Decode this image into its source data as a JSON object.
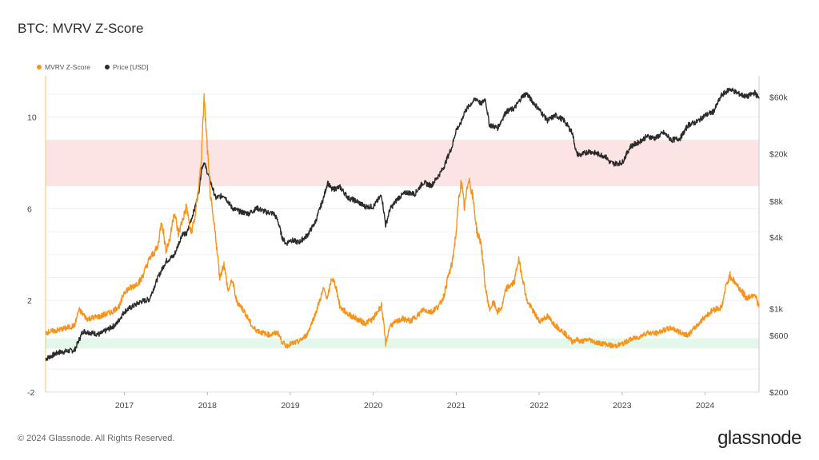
{
  "title": "BTC: MVRV Z-Score",
  "footer": "© 2024 Glassnode. All Rights Reserved.",
  "logo": "glassnode",
  "colors": {
    "zscore": "#f7931a",
    "price": "#2b2b2b",
    "red_band": "#fde4e4",
    "green_band": "#e3f7ea",
    "grid": "#f0f0f0",
    "axis_text": "#444444"
  },
  "chart_data": {
    "type": "line",
    "title": "BTC: MVRV Z-Score",
    "legend": [
      {
        "name": "MVRV Z-Score",
        "color": "#f7931a"
      },
      {
        "name": "Price [USD]",
        "color": "#2b2b2b"
      }
    ],
    "legend_position": "top-left",
    "x_range": [
      2016.05,
      2024.65
    ],
    "x_ticks": [
      "2017",
      "2018",
      "2019",
      "2020",
      "2021",
      "2022",
      "2023",
      "2024"
    ],
    "y_left": {
      "ticks": [
        "10",
        "6",
        "2",
        "-2"
      ],
      "tick_values": [
        10,
        6,
        2,
        -2
      ],
      "range": [
        -2,
        11.8
      ]
    },
    "y_right": {
      "scale": "log",
      "ticks": [
        "$60k",
        "$20k",
        "$8k",
        "$4k",
        "$1k",
        "$600",
        "$200"
      ],
      "tick_values": [
        60000,
        20000,
        8000,
        4000,
        1000,
        600,
        200
      ],
      "range": [
        200,
        90000
      ]
    },
    "bands": [
      {
        "name": "overvalued-zone",
        "y_from": 7.0,
        "y_to": 9.0
      },
      {
        "name": "undervalued-zone",
        "y_from": -0.1,
        "y_to": 0.35
      }
    ],
    "series": [
      {
        "name": "MVRV Z-Score",
        "axis": "left",
        "x": [
          2016.05,
          2016.2,
          2016.4,
          2016.45,
          2016.55,
          2016.7,
          2016.85,
          2016.95,
          2017.0,
          2017.1,
          2017.2,
          2017.3,
          2017.4,
          2017.45,
          2017.5,
          2017.55,
          2017.6,
          2017.65,
          2017.7,
          2017.75,
          2017.8,
          2017.85,
          2017.9,
          2017.93,
          2017.96,
          2018.0,
          2018.03,
          2018.06,
          2018.1,
          2018.15,
          2018.2,
          2018.25,
          2018.3,
          2018.35,
          2018.45,
          2018.55,
          2018.65,
          2018.75,
          2018.85,
          2018.9,
          2018.95,
          2019.0,
          2019.1,
          2019.2,
          2019.3,
          2019.4,
          2019.45,
          2019.5,
          2019.55,
          2019.6,
          2019.7,
          2019.8,
          2019.9,
          2020.0,
          2020.05,
          2020.1,
          2020.15,
          2020.2,
          2020.25,
          2020.35,
          2020.45,
          2020.55,
          2020.6,
          2020.7,
          2020.8,
          2020.85,
          2020.9,
          2020.95,
          2021.0,
          2021.03,
          2021.06,
          2021.1,
          2021.15,
          2021.2,
          2021.25,
          2021.3,
          2021.35,
          2021.4,
          2021.45,
          2021.5,
          2021.55,
          2021.6,
          2021.7,
          2021.75,
          2021.8,
          2021.85,
          2021.9,
          2022.0,
          2022.1,
          2022.2,
          2022.3,
          2022.4,
          2022.45,
          2022.5,
          2022.6,
          2022.7,
          2022.8,
          2022.9,
          2023.0,
          2023.1,
          2023.2,
          2023.3,
          2023.4,
          2023.5,
          2023.6,
          2023.7,
          2023.8,
          2023.9,
          2024.0,
          2024.1,
          2024.2,
          2024.25,
          2024.3,
          2024.4,
          2024.5,
          2024.6,
          2024.65
        ],
        "values": [
          0.6,
          0.7,
          0.9,
          1.6,
          1.2,
          1.3,
          1.5,
          1.8,
          2.4,
          2.6,
          2.9,
          3.8,
          4.3,
          5.5,
          4.2,
          4.7,
          5.9,
          4.9,
          5.5,
          6.1,
          4.9,
          5.6,
          7.1,
          8.3,
          10.9,
          8.6,
          6.9,
          5.8,
          4.8,
          3.0,
          3.6,
          2.4,
          2.9,
          2.0,
          1.5,
          0.8,
          0.6,
          0.5,
          0.6,
          0.2,
          0.0,
          0.1,
          0.2,
          0.5,
          1.4,
          2.5,
          2.1,
          3.0,
          2.6,
          1.7,
          1.4,
          1.2,
          1.0,
          1.2,
          1.5,
          1.8,
          0.1,
          0.9,
          1.0,
          1.2,
          1.1,
          1.4,
          1.6,
          1.5,
          1.8,
          2.2,
          3.0,
          3.6,
          5.0,
          6.4,
          7.2,
          6.0,
          7.4,
          6.5,
          5.0,
          4.5,
          2.6,
          1.6,
          1.9,
          1.5,
          1.7,
          2.5,
          2.8,
          3.8,
          3.0,
          2.0,
          1.7,
          1.1,
          1.3,
          0.9,
          0.6,
          0.2,
          0.3,
          0.2,
          0.3,
          0.15,
          0.1,
          0.0,
          0.1,
          0.3,
          0.4,
          0.6,
          0.55,
          0.7,
          0.8,
          0.6,
          0.5,
          0.9,
          1.3,
          1.6,
          1.7,
          2.6,
          3.1,
          2.6,
          2.1,
          2.3,
          1.7
        ]
      },
      {
        "name": "Price [USD]",
        "axis": "right",
        "x": [
          2016.05,
          2016.2,
          2016.4,
          2016.5,
          2016.7,
          2016.9,
          2017.0,
          2017.1,
          2017.2,
          2017.3,
          2017.4,
          2017.5,
          2017.6,
          2017.7,
          2017.75,
          2017.8,
          2017.85,
          2017.9,
          2017.93,
          2017.96,
          2018.0,
          2018.05,
          2018.1,
          2018.2,
          2018.3,
          2018.4,
          2018.5,
          2018.6,
          2018.7,
          2018.8,
          2018.85,
          2018.9,
          2018.95,
          2019.0,
          2019.1,
          2019.2,
          2019.3,
          2019.4,
          2019.45,
          2019.5,
          2019.6,
          2019.7,
          2019.8,
          2019.9,
          2020.0,
          2020.1,
          2020.15,
          2020.2,
          2020.3,
          2020.4,
          2020.5,
          2020.6,
          2020.7,
          2020.8,
          2020.85,
          2020.9,
          2020.95,
          2021.0,
          2021.05,
          2021.1,
          2021.2,
          2021.25,
          2021.3,
          2021.35,
          2021.4,
          2021.5,
          2021.6,
          2021.7,
          2021.8,
          2021.85,
          2021.9,
          2022.0,
          2022.1,
          2022.2,
          2022.3,
          2022.4,
          2022.45,
          2022.5,
          2022.6,
          2022.7,
          2022.8,
          2022.85,
          2022.9,
          2023.0,
          2023.1,
          2023.2,
          2023.3,
          2023.4,
          2023.5,
          2023.6,
          2023.7,
          2023.8,
          2023.9,
          2024.0,
          2024.1,
          2024.2,
          2024.3,
          2024.4,
          2024.5,
          2024.6,
          2024.65
        ],
        "values": [
          380,
          430,
          450,
          650,
          610,
          740,
          950,
          1050,
          1150,
          1200,
          1800,
          2500,
          2800,
          4300,
          4200,
          5500,
          7000,
          10000,
          15000,
          17000,
          14000,
          11000,
          8500,
          9000,
          7000,
          6500,
          6300,
          7000,
          6500,
          6300,
          5500,
          4000,
          3500,
          3800,
          3600,
          4100,
          5300,
          8500,
          11500,
          10000,
          10500,
          8500,
          8000,
          7200,
          7200,
          9000,
          5000,
          6800,
          8500,
          9500,
          9200,
          11500,
          10800,
          13500,
          15500,
          19000,
          23000,
          32000,
          35000,
          45000,
          55000,
          58000,
          52000,
          58000,
          35000,
          33000,
          45000,
          48000,
          61000,
          64000,
          57000,
          47000,
          38000,
          42000,
          38000,
          30000,
          20000,
          19500,
          21000,
          20000,
          19000,
          17000,
          16500,
          16800,
          23000,
          25000,
          28000,
          27000,
          30000,
          26000,
          27000,
          35000,
          37000,
          42000,
          45000,
          62000,
          70000,
          64000,
          60000,
          65000,
          58000
        ]
      }
    ]
  }
}
